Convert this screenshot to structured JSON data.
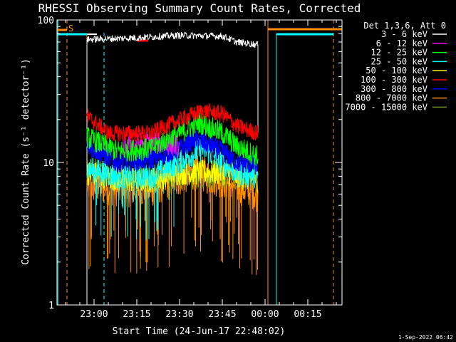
{
  "chart_data": {
    "type": "line",
    "title": "RHESSI Observing Summary Count Rates, Corrected",
    "xlabel": "Start Time (24-Jun-17 22:48:02)",
    "ylabel": "Corrected Count Rate (s⁻¹ detector⁻¹)",
    "y_scale": "log",
    "ylim": [
      1,
      100
    ],
    "y_ticks": [
      "1",
      "10",
      "100"
    ],
    "x_range_minutes": [
      -13,
      87
    ],
    "x_ticks": [
      {
        "label": "23:00",
        "minute": 0
      },
      {
        "label": "23:15",
        "minute": 15
      },
      {
        "label": "23:30",
        "minute": 30
      },
      {
        "label": "23:45",
        "minute": 45
      },
      {
        "label": "00:00",
        "minute": 60
      },
      {
        "label": "00:15",
        "minute": 75
      }
    ],
    "legend_header": "Det 1,3,6, Att 0",
    "legend_position": "outside-right",
    "series": [
      {
        "name": "3 - 6 keV",
        "color": "#ffffff"
      },
      {
        "name": "6 - 12 keV",
        "color": "#ff00ff"
      },
      {
        "name": "12 - 25 keV",
        "color": "#00ff00"
      },
      {
        "name": "25 - 50 keV",
        "color": "#00ffff"
      },
      {
        "name": "50 - 100 keV",
        "color": "#ffff00"
      },
      {
        "name": "100 - 300 keV",
        "color": "#ff0000"
      },
      {
        "name": "300 - 800 keV",
        "color": "#0000ff"
      },
      {
        "name": "800 - 7000 keV",
        "color": "#ff8c00"
      },
      {
        "name": "7000 - 15000 keV",
        "color": "#6b8e23"
      }
    ],
    "profiles": {
      "white": [
        {
          "m": -2.5,
          "v": 73
        },
        {
          "m": 15,
          "v": 75
        },
        {
          "m": 30,
          "v": 78
        },
        {
          "m": 45,
          "v": 77
        },
        {
          "m": 50,
          "v": 70
        },
        {
          "m": 57.5,
          "v": 67
        }
      ],
      "red": [
        {
          "m": -2.5,
          "v": 21
        },
        {
          "m": 5,
          "v": 16
        },
        {
          "m": 20,
          "v": 16
        },
        {
          "m": 28,
          "v": 19
        },
        {
          "m": 38,
          "v": 23
        },
        {
          "m": 45,
          "v": 22
        },
        {
          "m": 50,
          "v": 18
        },
        {
          "m": 57.5,
          "v": 16
        }
      ],
      "green": [
        {
          "m": -2.5,
          "v": 15
        },
        {
          "m": 8,
          "v": 12
        },
        {
          "m": 20,
          "v": 12.5
        },
        {
          "m": 30,
          "v": 16
        },
        {
          "m": 37,
          "v": 19
        },
        {
          "m": 45,
          "v": 16
        },
        {
          "m": 50,
          "v": 13
        },
        {
          "m": 57.5,
          "v": 11
        }
      ],
      "magenta": [
        {
          "m": 10,
          "v": 13
        },
        {
          "m": 20,
          "v": 14
        },
        {
          "m": 30,
          "v": 13
        }
      ],
      "blue": [
        {
          "m": -2.5,
          "v": 13
        },
        {
          "m": 8,
          "v": 10
        },
        {
          "m": 20,
          "v": 10.5
        },
        {
          "m": 30,
          "v": 12.5
        },
        {
          "m": 36,
          "v": 14.5
        },
        {
          "m": 45,
          "v": 12
        },
        {
          "m": 50,
          "v": 10
        },
        {
          "m": 57.5,
          "v": 9.5
        }
      ],
      "cyan": [
        {
          "m": -2.5,
          "v": 9
        },
        {
          "m": 8,
          "v": 8
        },
        {
          "m": 20,
          "v": 8
        },
        {
          "m": 30,
          "v": 10
        },
        {
          "m": 38,
          "v": 12.5
        },
        {
          "m": 45,
          "v": 10
        },
        {
          "m": 50,
          "v": 8.5
        },
        {
          "m": 57.5,
          "v": 8
        }
      ],
      "yellow": [
        {
          "m": -2.5,
          "v": 8.5
        },
        {
          "m": 10,
          "v": 7.5
        },
        {
          "m": 20,
          "v": 7.5
        },
        {
          "m": 30,
          "v": 8.5
        },
        {
          "m": 45,
          "v": 8.5
        },
        {
          "m": 57.5,
          "v": 7.5
        }
      ],
      "orange": [
        {
          "m": -2.5,
          "v": 7
        },
        {
          "m": 10,
          "v": 6.5
        },
        {
          "m": 20,
          "v": 6.5
        },
        {
          "m": 35,
          "v": 8.5
        },
        {
          "m": 45,
          "v": 7.5
        },
        {
          "m": 57.5,
          "v": 6
        }
      ],
      "olive": [
        {
          "m": -2.5,
          "v": 9
        },
        {
          "m": 10,
          "v": 8
        },
        {
          "m": 20,
          "v": 8
        },
        {
          "m": 30,
          "v": 8
        },
        {
          "m": 57.5,
          "v": 8
        }
      ]
    },
    "flags": {
      "s_label": "S",
      "saa_left_minutes": [
        -13,
        -9.5
      ],
      "saa_right_minutes": [
        61,
        87
      ],
      "cyan_top_left_minutes": [
        -13,
        -2.5
      ],
      "cyan_top_right_minutes": [
        64,
        84
      ],
      "white_top_left_minutes": [
        -2.5,
        1
      ]
    }
  },
  "timestamp": "1-Sep-2022 06:42"
}
